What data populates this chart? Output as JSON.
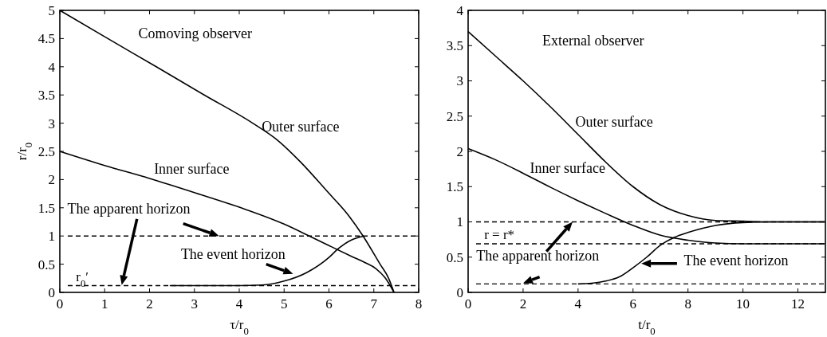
{
  "chart_data": [
    {
      "type": "line",
      "xlabel": "τ/r$_{0}$",
      "ylabel": "r/r$_{0}$",
      "xlim": [
        0,
        8
      ],
      "ylim": [
        0,
        5
      ],
      "xticks": [
        0,
        1,
        2,
        3,
        4,
        5,
        6,
        7,
        8
      ],
      "yticks": [
        0,
        {
          "value": 0.5,
          "label": "0.5"
        },
        1,
        {
          "value": 1.5,
          "label": "1.5"
        },
        2,
        {
          "value": 2.5,
          "label": "2.5"
        },
        3,
        {
          "value": 3.5,
          "label": "3.5"
        },
        4,
        {
          "value": 4.5,
          "label": "4.5"
        },
        5
      ],
      "grid": false,
      "line_style": "solid",
      "series": [
        {
          "name": "Outer surface",
          "color": "#000000",
          "x": [
            0,
            1.07,
            2.15,
            3.22,
            4.3,
            4.85,
            5.38,
            5.95,
            6.45,
            6.76,
            7.14,
            7.33,
            7.45
          ],
          "values": [
            5,
            4.5,
            4,
            3.5,
            3,
            2.7,
            2.3,
            1.8,
            1.35,
            1,
            0.5,
            0.25,
            0
          ]
        },
        {
          "name": "Inner surface",
          "color": "#000000",
          "x": [
            0,
            1,
            2,
            3,
            4,
            5,
            5.56,
            6,
            6.5,
            6.8,
            7.05,
            7.25,
            7.45
          ],
          "values": [
            2.5,
            2.25,
            2.02,
            1.77,
            1.51,
            1.21,
            1.0,
            0.83,
            0.64,
            0.53,
            0.42,
            0.26,
            0
          ]
        },
        {
          "color": "#000000",
          "x": [
            2.45,
            3,
            4,
            4.5,
            5,
            5.5,
            6,
            6.2,
            6.5,
            6.78
          ],
          "values": [
            0.12,
            0.12,
            0.12,
            0.13,
            0.2,
            0.35,
            0.62,
            0.77,
            0.93,
            1.0
          ]
        }
      ],
      "ref_lines": [
        {
          "axis": "y",
          "value": 1,
          "line_style": "dashed",
          "color": "#000000"
        },
        {
          "axis": "y",
          "value": 0.12,
          "label": "r$_{0}$′",
          "line_style": "dashed",
          "color": "#000000"
        }
      ],
      "annotations": [
        "Comoving observer",
        {
          "text": "The apparent horizon",
          "x": 3.55,
          "y": 1
        },
        {
          "text": "The event horizon",
          "x": 5.2,
          "y": 0.33
        }
      ]
    },
    {
      "type": "line",
      "xlabel": "t/r$_{0}$",
      "xlim": [
        0,
        13
      ],
      "ylim": [
        0,
        4
      ],
      "xticks": [
        0,
        2,
        4,
        6,
        8,
        10,
        12
      ],
      "yticks": [
        0,
        {
          "value": 0.5,
          "label": "0.5"
        },
        1,
        {
          "value": 1.5,
          "label": "1.5"
        },
        2,
        {
          "value": 2.5,
          "label": "2.5"
        },
        3,
        {
          "value": 3.5,
          "label": "3.5"
        },
        4
      ],
      "grid": false,
      "line_style": "solid",
      "series": [
        {
          "name": "Outer surface",
          "color": "#000000",
          "x": [
            0,
            1,
            2,
            3,
            4,
            5,
            6,
            7,
            8,
            9,
            10,
            11,
            13
          ],
          "values": [
            3.7,
            3.35,
            3.0,
            2.63,
            2.24,
            1.85,
            1.5,
            1.24,
            1.09,
            1.02,
            1.01,
            1,
            1
          ]
        },
        {
          "name": "Inner surface",
          "color": "#000000",
          "x": [
            0,
            1,
            2,
            3,
            4,
            5,
            6,
            7,
            8,
            9,
            10,
            13
          ],
          "values": [
            2.04,
            1.88,
            1.69,
            1.49,
            1.3,
            1.12,
            0.95,
            0.81,
            0.74,
            0.7,
            0.69,
            0.69
          ]
        },
        {
          "color": "#000000",
          "x": [
            4,
            4.5,
            5,
            5.5,
            6,
            6.5,
            7,
            7.5,
            8,
            9,
            10,
            11,
            13
          ],
          "values": [
            0.12,
            0.13,
            0.16,
            0.22,
            0.35,
            0.5,
            0.67,
            0.78,
            0.85,
            0.95,
            0.99,
            1,
            1
          ]
        }
      ],
      "ref_lines": [
        {
          "axis": "y",
          "value": 1,
          "line_style": "dashed",
          "color": "#000000"
        },
        {
          "axis": "y",
          "value": 0.69,
          "label": "r = r*",
          "line_style": "dashed",
          "color": "#000000"
        },
        {
          "axis": "y",
          "value": 0.12,
          "line_style": "dashed",
          "color": "#000000"
        }
      ],
      "annotations": [
        "External observer",
        {
          "text": "The apparent horizon",
          "x": 3.8,
          "y": 1
        },
        {
          "text": "The event horizon",
          "x": 6.3,
          "y": 0.41
        }
      ]
    }
  ]
}
